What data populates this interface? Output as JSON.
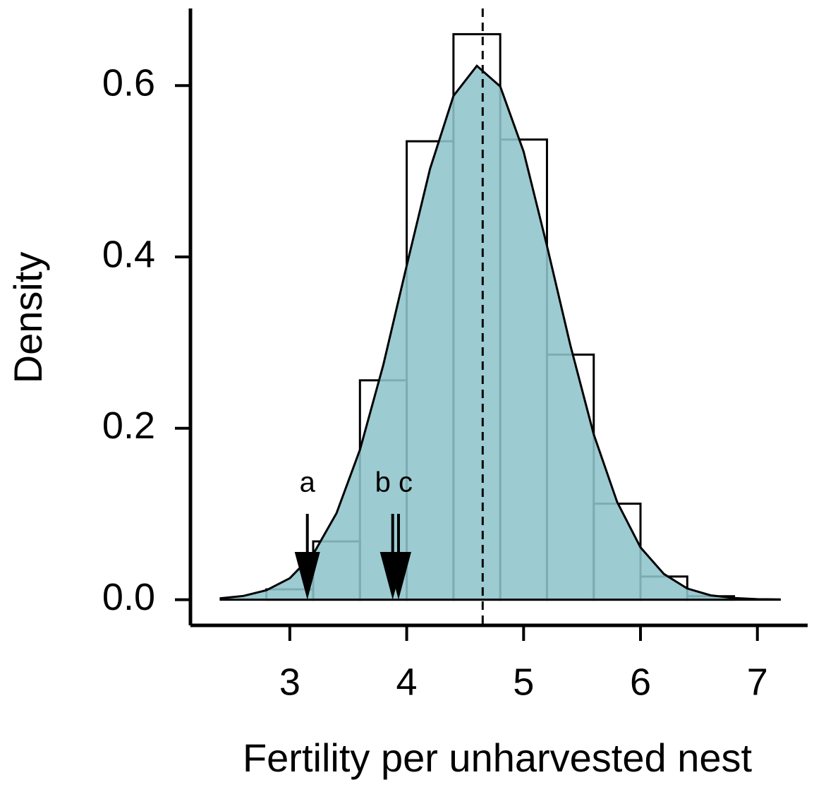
{
  "chart_data": {
    "type": "histogram",
    "xlabel": "Fertility per unharvested nest",
    "ylabel": "Density",
    "bins": [
      2.8,
      3.2,
      3.6,
      4.0,
      4.4,
      4.8,
      5.2,
      5.6,
      6.0,
      6.4,
      6.8
    ],
    "values": [
      0.012,
      0.068,
      0.256,
      0.535,
      0.66,
      0.537,
      0.286,
      0.112,
      0.027,
      0.004
    ],
    "color": "#8ec4cb",
    "density": {
      "x": [
        2.4,
        2.6,
        2.8,
        3.0,
        3.2,
        3.4,
        3.6,
        3.8,
        4.0,
        4.2,
        4.4,
        4.6,
        4.8,
        5.0,
        5.2,
        5.4,
        5.6,
        5.8,
        6.0,
        6.2,
        6.4,
        6.6,
        6.8,
        7.0,
        7.2
      ],
      "y": [
        0.0015,
        0.0043,
        0.011,
        0.025,
        0.053,
        0.101,
        0.175,
        0.274,
        0.39,
        0.503,
        0.588,
        0.623,
        0.599,
        0.523,
        0.413,
        0.297,
        0.193,
        0.114,
        0.061,
        0.03,
        0.013,
        0.005,
        0.002,
        0.0006,
        0.0002
      ]
    },
    "mean_line": 4.65,
    "annotations": [
      {
        "text": "a",
        "x": 3.15
      },
      {
        "text": "b",
        "x": 3.88
      },
      {
        "text": "c",
        "x": 3.93
      }
    ],
    "xlim": [
      2.15,
      7.43
    ],
    "ylim": [
      -0.03,
      0.69
    ],
    "xticks": [
      3,
      4,
      5,
      6,
      7
    ],
    "yticks": [
      {
        "value": 0,
        "label": "0.0"
      },
      0.2,
      0.4,
      0.6
    ]
  }
}
